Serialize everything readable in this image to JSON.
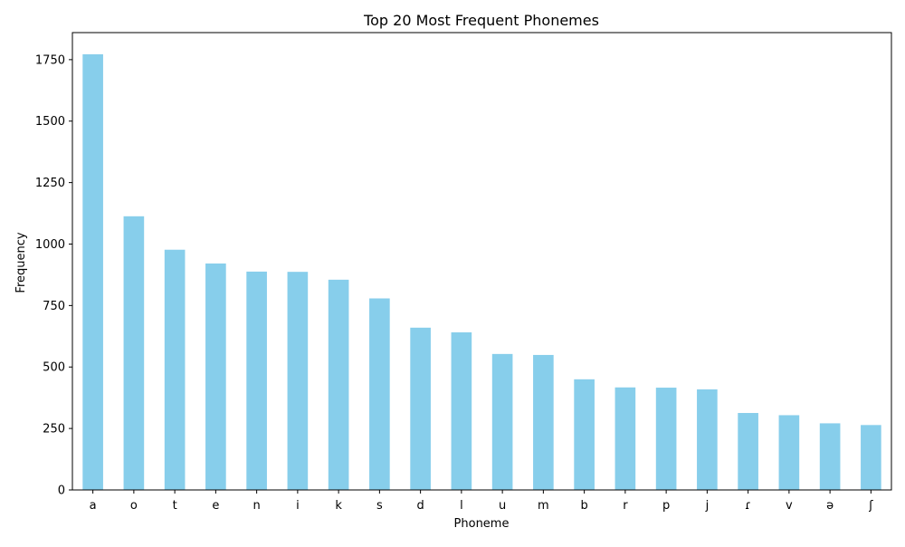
{
  "chart_data": {
    "type": "bar",
    "title": "Top 20 Most Frequent Phonemes",
    "xlabel": "Phoneme",
    "ylabel": "Frequency",
    "categories": [
      "a",
      "o",
      "t",
      "e",
      "n",
      "i",
      "k",
      "s",
      "d",
      "l",
      "u",
      "m",
      "b",
      "r",
      "p",
      "j",
      "ɾ",
      "v",
      "ə",
      "ʃ"
    ],
    "values": [
      1772,
      1113,
      977,
      921,
      888,
      887,
      855,
      779,
      660,
      641,
      553,
      549,
      450,
      417,
      416,
      409,
      313,
      304,
      271,
      264
    ],
    "ylim": [
      0,
      1860
    ],
    "yticks": [
      0,
      250,
      500,
      750,
      1000,
      1250,
      1500,
      1750
    ],
    "grid": false,
    "legend": "none",
    "bar_color": "#87ceeb"
  }
}
